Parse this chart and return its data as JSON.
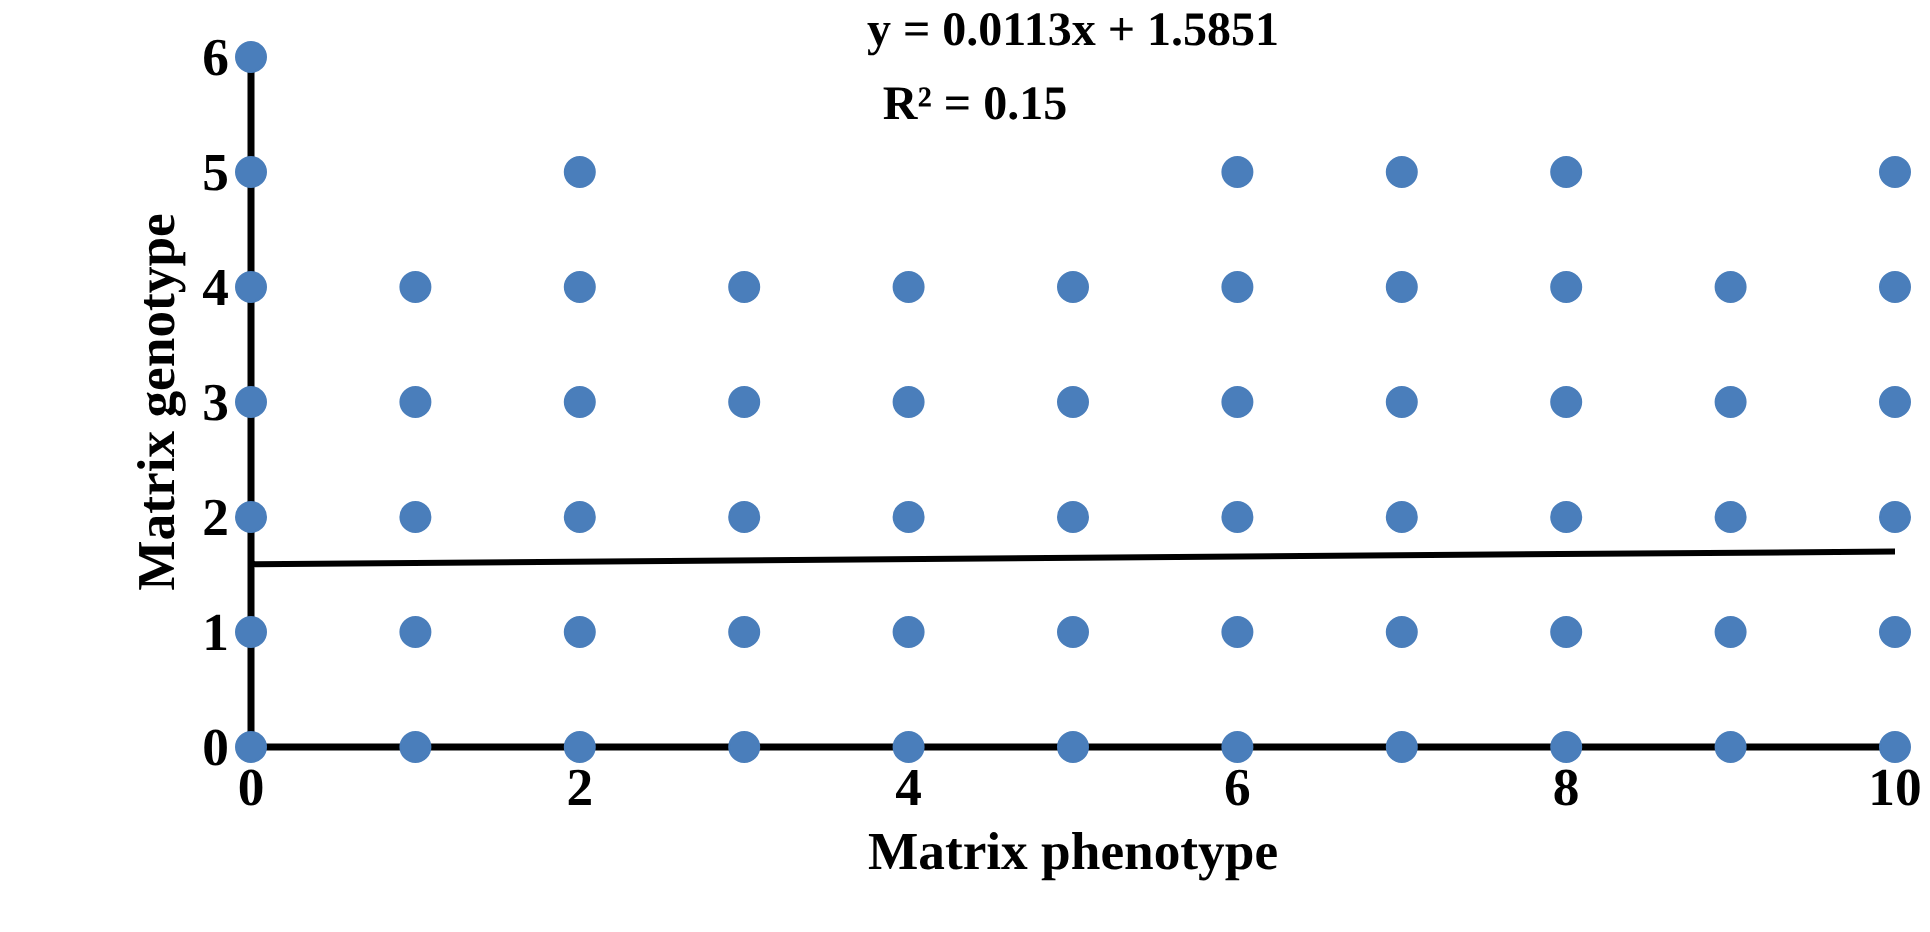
{
  "chart_data": {
    "type": "scatter",
    "xlabel": "Matrix phenotype",
    "ylabel": "Matrix genotype",
    "annotations": [
      "y = 0.0113x + 1.5851",
      "R² = 0.15"
    ],
    "xlim": [
      0,
      10
    ],
    "ylim": [
      0,
      6
    ],
    "xticks": [
      0,
      2,
      4,
      6,
      8,
      10
    ],
    "yticks": [
      0,
      1,
      2,
      3,
      4,
      5,
      6
    ],
    "grid": false,
    "marker": "circle",
    "series": [
      {
        "color": "#4a7ebb",
        "x": [
          0,
          0,
          0,
          0,
          0,
          0,
          0,
          1,
          1,
          1,
          1,
          1,
          2,
          2,
          2,
          2,
          2,
          2,
          3,
          3,
          3,
          3,
          3,
          4,
          4,
          4,
          4,
          4,
          5,
          5,
          5,
          5,
          5,
          6,
          6,
          6,
          6,
          6,
          6,
          7,
          7,
          7,
          7,
          7,
          7,
          8,
          8,
          8,
          8,
          8,
          8,
          9,
          9,
          9,
          9,
          9,
          10,
          10,
          10,
          10,
          10,
          10
        ],
        "values": [
          0,
          1,
          2,
          3,
          4,
          5,
          6,
          0,
          1,
          2,
          3,
          4,
          0,
          1,
          2,
          3,
          4,
          5,
          0,
          1,
          2,
          3,
          4,
          0,
          1,
          2,
          3,
          4,
          0,
          1,
          2,
          3,
          4,
          0,
          1,
          2,
          3,
          4,
          5,
          0,
          1,
          2,
          3,
          4,
          5,
          0,
          1,
          2,
          3,
          4,
          5,
          0,
          1,
          2,
          3,
          4,
          0,
          1,
          2,
          3,
          4,
          5
        ]
      },
      {
        "type": "line",
        "color": "#000000",
        "x": [
          0,
          10
        ],
        "values": [
          1.59,
          1.7
        ],
        "marker": "none",
        "line_style": "solid"
      }
    ]
  }
}
